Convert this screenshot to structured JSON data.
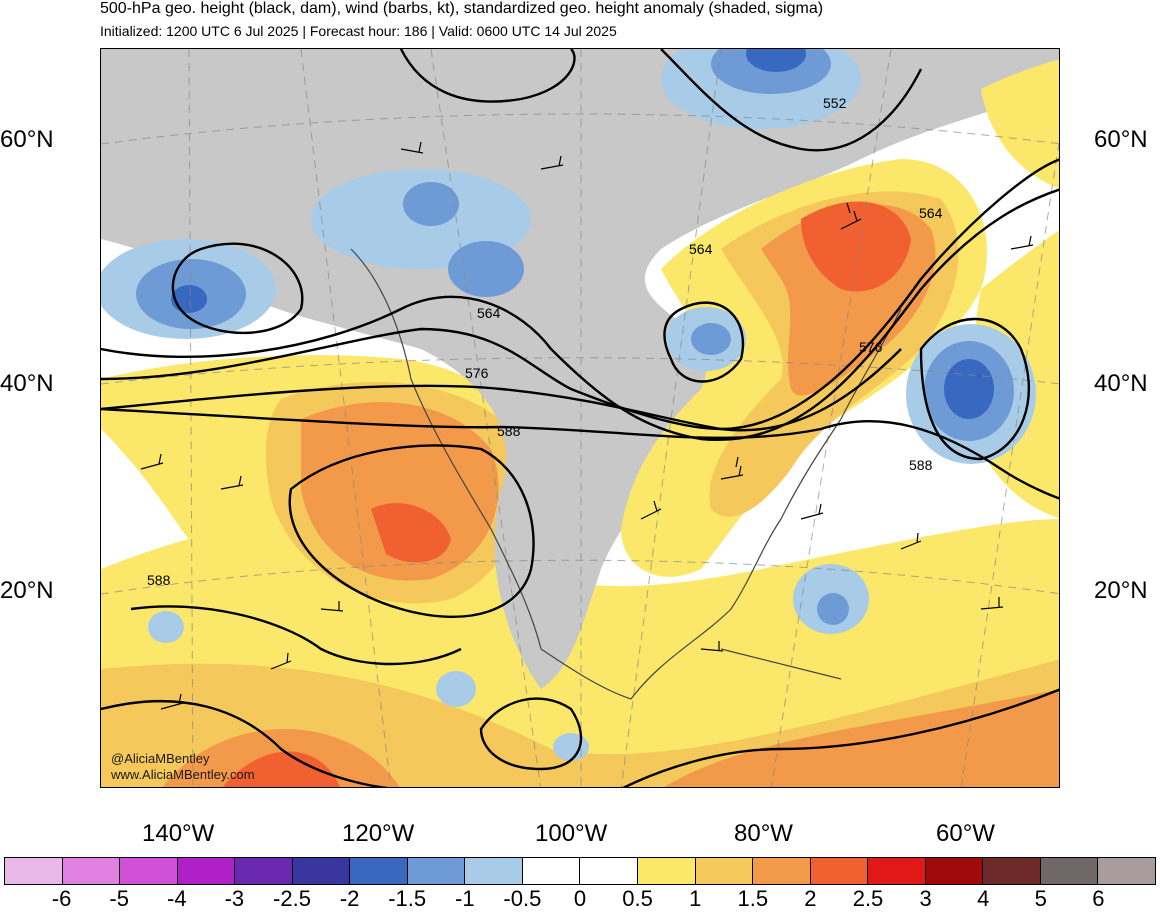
{
  "title": "500-hPa geo. height (black, dam), wind (barbs, kt), standardized geo. height anomaly (shaded, sigma)",
  "subtitle": "Initialized: 1200 UTC 6 Jul 2025 | Forecast hour: 186 | Valid: 0600 UTC 14 Jul 2025",
  "lat_labels": [
    "60°N",
    "40°N",
    "20°N"
  ],
  "lon_labels": [
    "140°W",
    "120°W",
    "100°W",
    "80°W",
    "60°W"
  ],
  "contour_labels": [
    "552",
    "564",
    "564",
    "564",
    "576",
    "576",
    "588",
    "588",
    "588"
  ],
  "credit": {
    "handle": "@AliciaMBentley",
    "url": "www.AliciaMBentley.com"
  },
  "colorbar": {
    "colors": [
      "#e8b8e8",
      "#e080e0",
      "#d050d8",
      "#b020c8",
      "#6a28b0",
      "#3a36a0",
      "#3868c0",
      "#6e9ad6",
      "#a8cce8",
      "#ffffff",
      "#ffffff",
      "#fbe86a",
      "#f4c85a",
      "#f29a4a",
      "#f06030",
      "#e01818",
      "#a00a0a",
      "#6e2a2a",
      "#706868",
      "#a89c9c"
    ],
    "ticks": [
      "-6",
      "-5",
      "-4",
      "-3",
      "-2.5",
      "-2",
      "-1.5",
      "-1",
      "-0.5",
      "0",
      "0.5",
      "1",
      "1.5",
      "2",
      "2.5",
      "3",
      "4",
      "5",
      "6"
    ]
  }
}
